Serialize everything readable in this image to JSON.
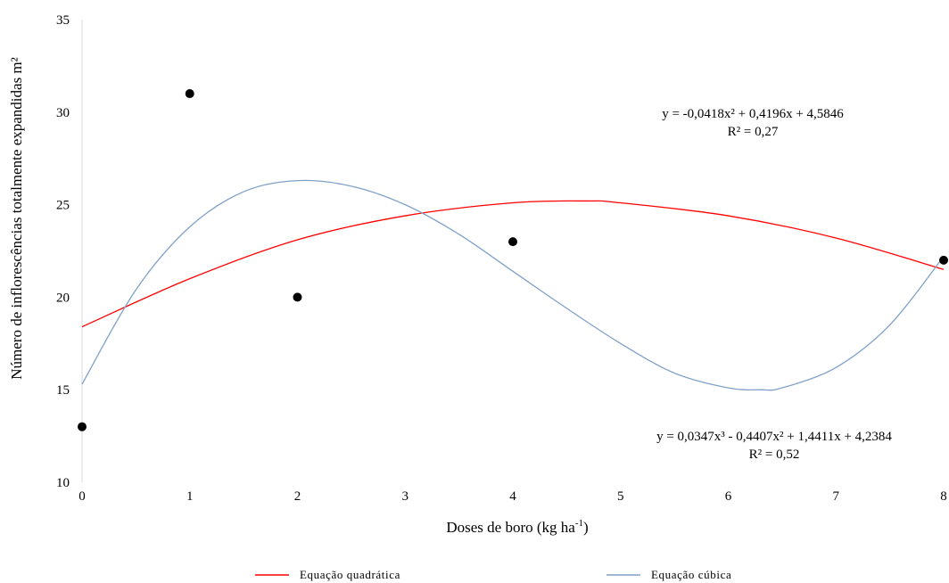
{
  "chart_data": {
    "type": "scatter",
    "title": "",
    "xlabel_main": "Doses de boro (kg ha",
    "xlabel_sup": "-1",
    "xlabel_end": ")",
    "ylabel": "Número de inflorescências totalmente expandidas m²",
    "xlim": [
      0,
      8
    ],
    "ylim": [
      10,
      35
    ],
    "x_ticks": [
      "0",
      "1",
      "2",
      "3",
      "4",
      "5",
      "6",
      "7",
      "8"
    ],
    "y_ticks": [
      "10",
      "15",
      "20",
      "25",
      "30",
      "35"
    ],
    "grid": false,
    "points": [
      {
        "x": 0,
        "y": 13
      },
      {
        "x": 1,
        "y": 31
      },
      {
        "x": 2,
        "y": 20
      },
      {
        "x": 4,
        "y": 23
      },
      {
        "x": 8,
        "y": 22
      }
    ],
    "series": [
      {
        "name": "Equação quadrática",
        "color": "#ff0000",
        "curve": "quadratic",
        "equation": "y = -0,0418x² + 0,4196x + 4,5846",
        "r2": "R² = 0,27",
        "samples": [
          [
            0,
            18.4
          ],
          [
            1,
            21.0
          ],
          [
            2,
            23.1
          ],
          [
            3,
            24.4
          ],
          [
            4,
            25.1
          ],
          [
            4.7,
            25.2
          ],
          [
            5,
            25.1
          ],
          [
            6,
            24.4
          ],
          [
            7,
            23.2
          ],
          [
            8,
            21.5
          ]
        ]
      },
      {
        "name": "Equação cúbica",
        "color": "#7fa1c9",
        "curve": "cubic",
        "equation": "y = 0,0347x³ - 0,4407x² + 1,4411x + 4,2384",
        "r2": "R² = 0,52",
        "samples": [
          [
            0,
            15.3
          ],
          [
            0.5,
            20.4
          ],
          [
            1,
            23.8
          ],
          [
            1.5,
            25.7
          ],
          [
            2,
            26.3
          ],
          [
            2.5,
            26.0
          ],
          [
            3,
            25.0
          ],
          [
            3.5,
            23.4
          ],
          [
            4,
            21.4
          ],
          [
            4.5,
            19.4
          ],
          [
            5,
            17.5
          ],
          [
            5.5,
            15.9
          ],
          [
            6,
            15.1
          ],
          [
            6.3,
            15.0
          ],
          [
            6.5,
            15.1
          ],
          [
            7,
            16.2
          ],
          [
            7.5,
            18.5
          ],
          [
            8,
            22.2
          ]
        ]
      }
    ],
    "legend_position": "bottom"
  }
}
